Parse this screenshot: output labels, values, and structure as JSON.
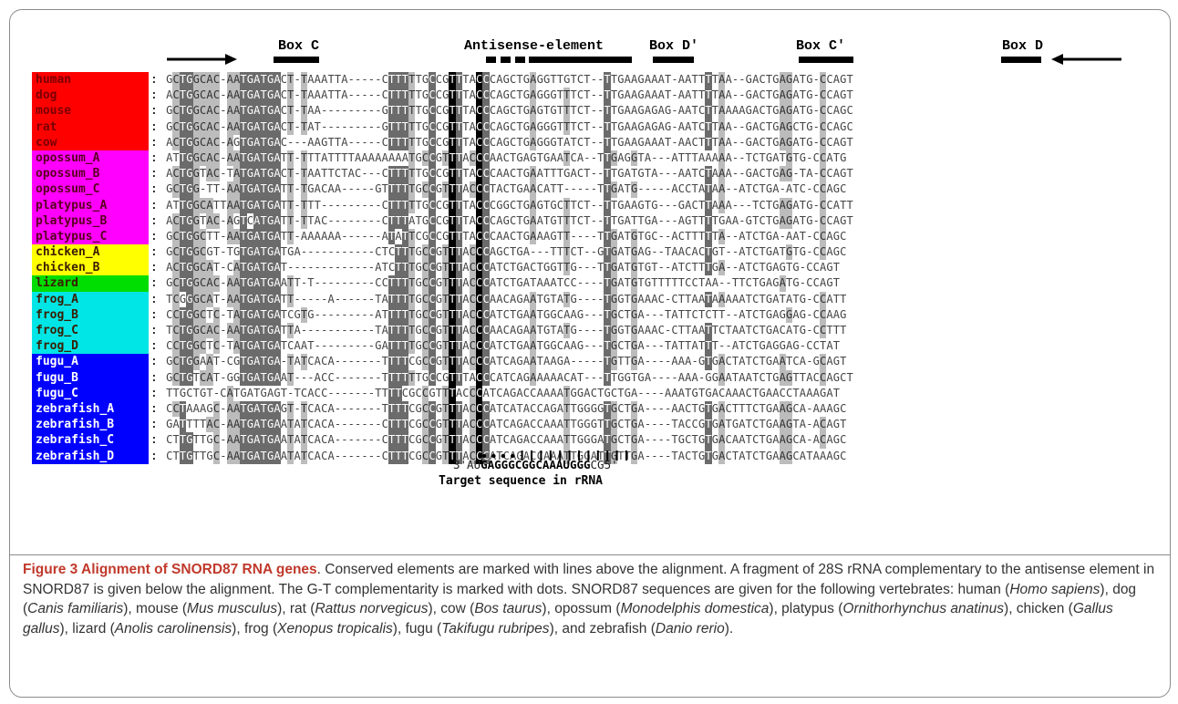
{
  "conserved_elements": [
    {
      "id": "box-c",
      "label": "Box C"
    },
    {
      "id": "antisense",
      "label": "Antisense-element"
    },
    {
      "id": "box-d-prime",
      "label": "Box D′"
    },
    {
      "id": "box-c-prime",
      "label": "Box C′"
    },
    {
      "id": "box-d",
      "label": "Box D"
    }
  ],
  "alignment": [
    {
      "name": "human",
      "color": "#ff0000",
      "seq": "GCTGGCAC-AATGATGACT-TAAATTA-----CTTTTTGCCGTTTACCCAGCTGAGGTTGTCT--TTGAAGAAAT-AATTTTAA--GACTGAGATG-CCAGT"
    },
    {
      "name": "dog",
      "color": "#ff0000",
      "seq": "ACTGGCAC-AATGATGACT-TAAATTA-----CTTTTTGCCGTTTACCCAGCTGAGGGTTTCT--TTGAAGAAAT-AATTTTAA--GACTGAGATG-CCAGT"
    },
    {
      "name": "mouse",
      "color": "#ff0000",
      "seq": "GCTGGCAC-AATGATGACT-TAA---------GTTTTTGCCGTTTACCCAGCTGAGTGTTTCT--TTGAAGAGAG-AATCTTAAAAGACTGAGATG-CCAGC"
    },
    {
      "name": "rat",
      "color": "#ff0000",
      "seq": "GCTGGCAC-AATGATGACT-TAT---------GTTTTTGCCGTTTACCCAGCTGAGGGTTTCT--TTGAAGAGAG-AATCTTAA--GACTGAGCTG-CCAGC"
    },
    {
      "name": "cow",
      "color": "#ff0000",
      "seq": "ACTGGCAC-AGTGATGAC---AAGTTA-----CTTTTTGCCGTTTACCCAGCTGAGGGTATCT--TTGAAGAAAT-AACTTTAA--GACTGAGATG-CCAGT"
    },
    {
      "name": "opossum_A",
      "color": "#ff00ff",
      "seq": "ATTGGCAC-AATGATGATT-TTTATTTTAAAAAAAATGCCGTTTACCCAACTGAGTGAATCA--TTGAGGTA---ATTTAAAAA--TCTGATGTG-CCATG"
    },
    {
      "name": "opossum_B",
      "color": "#ff00ff",
      "seq": "ACTGGTAC-TATGATGACT-TAATTCTAC---CTTTTTGCCGTTTACCCAACTGAATTTGACT--TTGATGTA---AATCTAAA--GACTGAG-TA-CCAGT"
    },
    {
      "name": "opossum_C",
      "color": "#ff00ff",
      "seq": "GCTGG-TT-AATGATGATT-TGACAA-----GTTTTTGCCGTTTACCCTACTGAACATT-----TTGATG-----ACCTATAA--ATCTGA-ATC-CCAGC"
    },
    {
      "name": "platypus_A",
      "color": "#ff00ff",
      "seq": "ATTGGCATTAATGATGATT-TTT---------CTTTTTGCCGTTTACCCGGCTGAGTGCTTCT--TTGAAGTG---GACTTAAA---TCTGAGATG-CCATT"
    },
    {
      "name": "platypus_B",
      "color": "#ff00ff",
      "seq": "ACTGGTAC-AGTCATGATT-TTAC--------CTTTATGCCGTTTACCCAGCTGAATGTTTCT--TTGATTGA---AGTTTTGAA-GTCTGAGATG-CCAGT"
    },
    {
      "name": "platypus_C",
      "color": "#ff00ff",
      "seq": "GCTGGCTT-AATGATGATT-AAAAAA------ATATTCGCCGTTTACCCAACTGAAAGTT----TTGATGTGC--ACTTTTTA--ATCTGA-AAT-CCAGC"
    },
    {
      "name": "chicken_A",
      "color": "#ffff00",
      "seq": "GCTGGCGT-TGTGATGATGA-----------CTCTTTGCCGTTTACCCAGCTGA---TTTCT--GTGATGAG--TAACACTGT--ATCTGATGTG-CCAGC"
    },
    {
      "name": "chicken_B",
      "color": "#ffff00",
      "seq": "ACTGGCAT-CATGATGAT-------------ATCTTTGCCGTTTACCCATCTGACTGGTTG---TTGATGTGT--ATCTTTGA--ATCTGAGTG-CCAGT"
    },
    {
      "name": "lizard",
      "color": "#00dd00",
      "seq": "GCTGGCAC-AATGATGAATT-T---------CCTTTTGCCGTTTACCCATCTGATAAATCC----TGATGTGTTTTTCCTAA--TTCTGAGATG-CCAGT"
    },
    {
      "name": "frog_A",
      "color": "#00e5e5",
      "seq": "TCGGGCAT-AATGATGATT-----A------TATTTTGCCGTTTACCCAACAGAATGTATG----TGGTGAAAC-CTTAATAAAAATCTGATATG-CCATT"
    },
    {
      "name": "frog_B",
      "color": "#00e5e5",
      "seq": "CCTGGCTC-TATGATGATCGTG---------ATTTTTGCCGTTTACCCATCTGAATGGCAAG---TGCTGA---TATTCTCTT--ATCTGAGGAG-CCAAG"
    },
    {
      "name": "frog_C",
      "color": "#00e5e5",
      "seq": "TCTGGCAC-AATGATGATTA-----------TATTTTGCCGTTTACCCAACAGAATGTATG----TGGTGAAAC-CTTAATTCTAATCTGACATG-CCTTT"
    },
    {
      "name": "frog_D",
      "color": "#00e5e5",
      "seq": "CCTGGCTC-TATGATGATCAAT---------GATTTTGCCGTTTACCCATCTGAATGGCAAG---TGCTGA---TATTATTT--ATCTGAGGAG-CCTAT"
    },
    {
      "name": "fugu_A",
      "color": "#0000ff",
      "seq": "GCTGGAAT-CGTGATGA-TATCACA-------TTTTCGCCGTTTACCCATCAGAATAAGA-----TGTTGA----AAA-GTGACTATCTGAATCA-GCAGT"
    },
    {
      "name": "fugu_B",
      "color": "#0000ff",
      "seq": "GCTGTCAT-GGTGATGAAT---ACC-------TTTTTTGCCGTTTACCCATCAGAAAAACAT---TTGGTGA----AAA-GGAATAATCTGAGTTACCAGCT"
    },
    {
      "name": "fugu_C",
      "color": "#0000ff",
      "seq": "TTGCTGT-CATGATGAGT-TCACC-------TTTTCGCCGTTTACCCATCAGACCAAAATGGACTGCTGA----AAATGTGACAAACTGAACCTAAAGAT"
    },
    {
      "name": "zebrafish_A",
      "color": "#0000ff",
      "seq": "CCTAAAGC-AATGATGAGT-TCACA-------TTTTCGCCGTTTACCCATCATACCAGATTGGGGTGCTGA----AACTGTGACTTTCTGAAGCA-AAAGC"
    },
    {
      "name": "zebrafish_B",
      "color": "#0000ff",
      "seq": "GATTTTAC-AATGATGAATATCACA-------CTTTCGCCGTTTACCCATCAGACCAAATTGGGTTGCTGA----TACCGTGATGATCTGAAGTA-ACAGT"
    },
    {
      "name": "zebrafish_C",
      "color": "#0000ff",
      "seq": "CTTGTTGC-AATGATGAATATCACA-------CTTTCGCCGTTTACCCATCAGACCAAATTGGGATGCTGA----TGCTGTGACAATCTGAAGCA-ACAGC"
    },
    {
      "name": "zebrafish_D",
      "color": "#0000ff",
      "seq": "CTTGTTGC-AATGATGAATATCACA-------CTTTCGCCGTTTACCCATCAGACCAAATTGGATTGTTGA----TACTGTGACTATCTGAAGCATAAAGC"
    }
  ],
  "target": {
    "prefix": "3'AU",
    "bold": "GAGGGCGGCAAAUGGG",
    "suffix": "CG5'",
    "caption": "Target sequence in rRNA"
  },
  "caption": {
    "title": "Figure 3 Alignment of SNORD87 RNA genes",
    "p1": ". Conserved elements are marked with lines above the alignment. A fragment of 28S rRNA complementary to the antisense element in SNORD87 is given below the alignment. The G-T complementarity is marked with dots. SNORD87 sequences are given for the following vertebrates: human (",
    "species": [
      {
        "common": "human",
        "latin": "Homo sapiens"
      },
      {
        "common": "dog",
        "latin": "Canis familiaris"
      },
      {
        "common": "mouse",
        "latin": "Mus musculus"
      },
      {
        "common": "rat",
        "latin": "Rattus norvegicus"
      },
      {
        "common": "cow",
        "latin": "Bos taurus"
      },
      {
        "common": "opossum",
        "latin": "Monodelphis domestica"
      },
      {
        "common": "platypus",
        "latin": "Ornithorhynchus anatinus"
      },
      {
        "common": "chicken",
        "latin": "Gallus gallus"
      },
      {
        "common": "lizard",
        "latin": "Anolis carolinensis"
      },
      {
        "common": "frog",
        "latin": "Xenopus tropicalis"
      },
      {
        "common": "fugu",
        "latin": "Takifugu rubripes"
      },
      {
        "common": "zebrafish",
        "latin": "Danio rerio"
      }
    ]
  }
}
